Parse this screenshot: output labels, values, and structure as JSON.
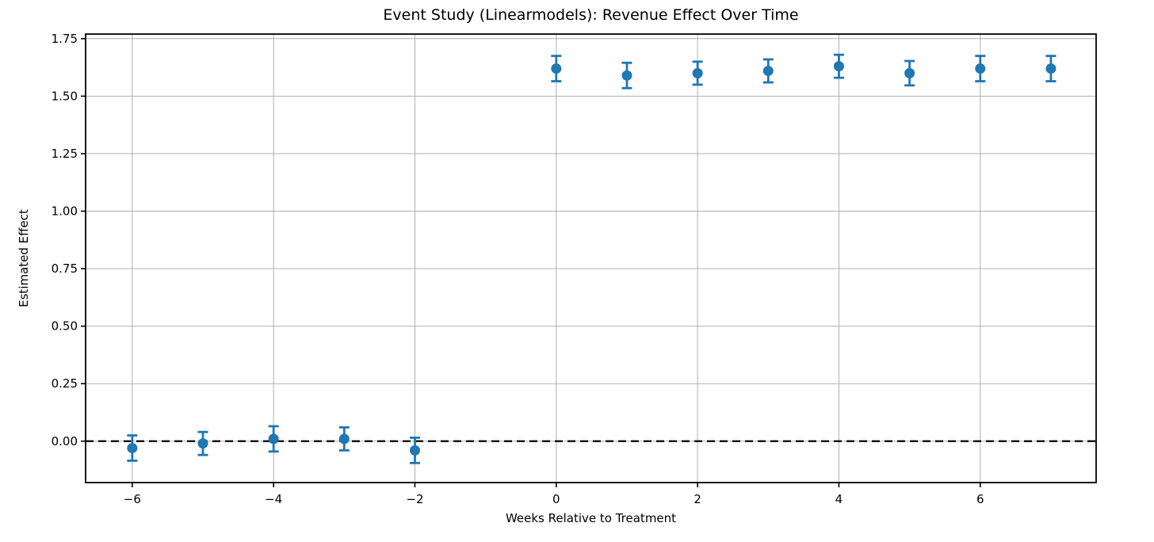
{
  "figure": {
    "background": "#ffffff"
  },
  "chart_data": {
    "type": "scatter",
    "subtype": "errorbar",
    "title": "Event Study (Linearmodels): Revenue Effect Over Time",
    "xlabel": "Weeks Relative to Treatment",
    "ylabel": "Estimated Effect",
    "x": [
      -6,
      -5,
      -4,
      -3,
      -2,
      0,
      1,
      2,
      3,
      4,
      5,
      6,
      7
    ],
    "effects": [
      -0.03,
      -0.01,
      0.01,
      0.01,
      -0.04,
      1.62,
      1.59,
      1.6,
      1.61,
      1.63,
      1.6,
      1.62,
      1.62
    ],
    "ci_half_width": [
      0.055,
      0.05,
      0.055,
      0.05,
      0.055,
      0.055,
      0.055,
      0.05,
      0.05,
      0.05,
      0.053,
      0.055,
      0.055
    ],
    "omitted_period": -1,
    "reference_line": {
      "y": 0,
      "style": "dashed"
    },
    "xlim": [
      -6.66,
      7.64
    ],
    "ylim": [
      -0.18,
      1.77
    ],
    "xticks": {
      "values": [
        -6,
        -4,
        -2,
        0,
        2,
        4,
        6
      ],
      "labels": [
        "−6",
        "−4",
        "−2",
        "0",
        "2",
        "4",
        "6"
      ]
    },
    "yticks": {
      "values": [
        0,
        0.25,
        0.5,
        0.75,
        1,
        1.25,
        1.5,
        1.75
      ],
      "labels": [
        "0.00",
        "0.25",
        "0.50",
        "0.75",
        "1.00",
        "1.25",
        "1.50",
        "1.75"
      ]
    },
    "grid": true,
    "legend": null,
    "colors": {
      "point": "#1f77b4",
      "grid": "#b0b0b0",
      "axis": "#000000",
      "text": "#000000",
      "zero_line": "#000000",
      "background": "#ffffff"
    }
  }
}
